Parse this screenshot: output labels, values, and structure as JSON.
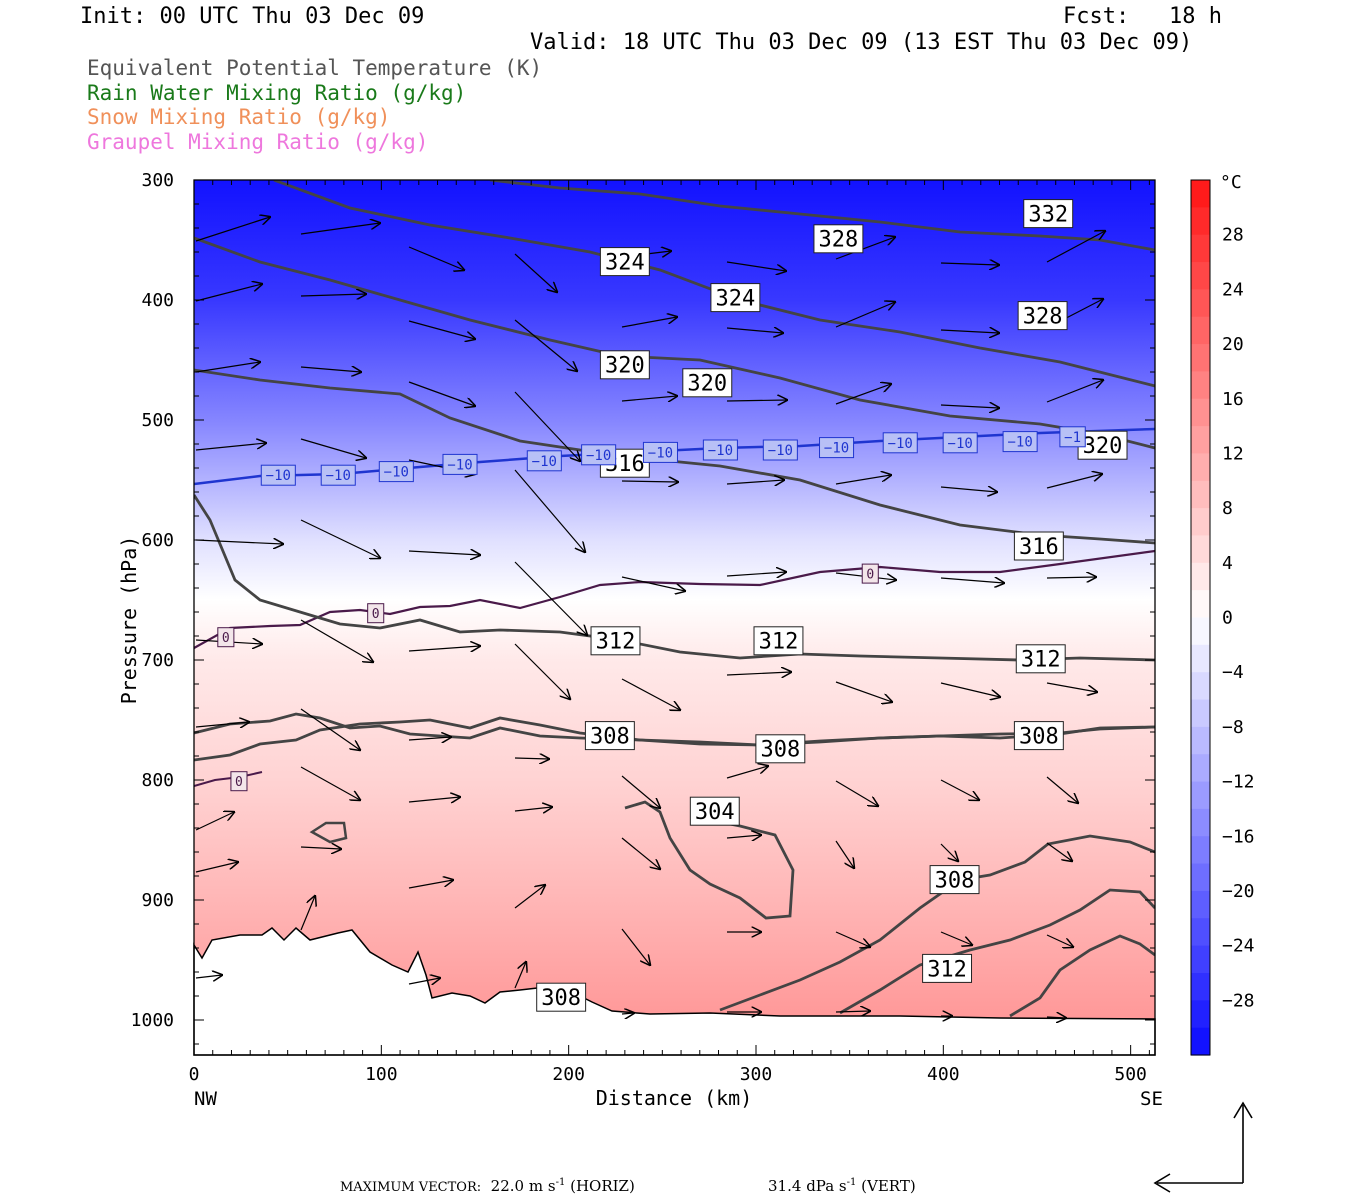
{
  "header": {
    "init": "Init: 00 UTC Thu 03 Dec 09",
    "fcst": "Fcst:   18 h",
    "valid": "Valid: 18 UTC Thu 03 Dec 09 (13 EST Thu 03 Dec 09)"
  },
  "legend": [
    {
      "label": "Equivalent Potential Temperature (K)",
      "color": "#555555"
    },
    {
      "label": "Rain Water Mixing Ratio (g/kg)",
      "color": "#1a7a1a"
    },
    {
      "label": "Snow Mixing Ratio (g/kg)",
      "color": "#f0905a"
    },
    {
      "label": "Graupel Mixing Ratio (g/kg)",
      "color": "#ee77dd"
    }
  ],
  "footer": {
    "max_vector_label": "MAXIMUM VECTOR:",
    "horiz_value": "22.0",
    "horiz_unit": "m s",
    "horiz_tail": "(HORIZ)",
    "vert_value": "31.4",
    "vert_unit": "dPa s",
    "vert_tail": "(VERT)",
    "exponent": "-1"
  },
  "chart_data": {
    "type": "heatmap",
    "xlabel": "Distance (km)",
    "ylabel": "Pressure (hPa)",
    "x_ticks": [
      "0",
      "100",
      "200",
      "300",
      "400",
      "500"
    ],
    "x_end_labels": {
      "left": "NW",
      "right": "SE"
    },
    "xlim": [
      0,
      513
    ],
    "ylim": [
      300,
      1030
    ],
    "y_ticks": [
      "300",
      "400",
      "500",
      "600",
      "700",
      "800",
      "900",
      "1000"
    ],
    "colorbar": {
      "unit": "°C",
      "labels": [
        "28",
        "24",
        "20",
        "16",
        "12",
        "8",
        "4",
        "0",
        "−4",
        "−8",
        "−12",
        "−16",
        "−20",
        "−24",
        "−28"
      ],
      "range": [
        -32,
        32
      ]
    },
    "temperature_field": [
      {
        "p": 300,
        "t": -31
      },
      {
        "p": 400,
        "t": -26
      },
      {
        "p": 500,
        "t": -16
      },
      {
        "p": 550,
        "t": -10
      },
      {
        "p": 600,
        "t": -4
      },
      {
        "p": 650,
        "t": 0
      },
      {
        "p": 700,
        "t": 3
      },
      {
        "p": 800,
        "t": 6
      },
      {
        "p": 900,
        "t": 10
      },
      {
        "p": 1000,
        "t": 14
      }
    ],
    "theta_e_labels": [
      {
        "text": "332",
        "x": 456,
        "p": 328
      },
      {
        "text": "328",
        "x": 344,
        "p": 349
      },
      {
        "text": "328",
        "x": 453,
        "p": 413
      },
      {
        "text": "324",
        "x": 230,
        "p": 368
      },
      {
        "text": "324",
        "x": 289,
        "p": 398
      },
      {
        "text": "320",
        "x": 230,
        "p": 454
      },
      {
        "text": "320",
        "x": 274,
        "p": 469
      },
      {
        "text": "320",
        "x": 485,
        "p": 521
      },
      {
        "text": "316",
        "x": 230,
        "p": 536
      },
      {
        "text": "316",
        "x": 451,
        "p": 605
      },
      {
        "text": "312",
        "x": 225,
        "p": 684
      },
      {
        "text": "312",
        "x": 312,
        "p": 684
      },
      {
        "text": "312",
        "x": 452,
        "p": 699
      },
      {
        "text": "308",
        "x": 222,
        "p": 763
      },
      {
        "text": "308",
        "x": 313,
        "p": 774
      },
      {
        "text": "308",
        "x": 451,
        "p": 763
      },
      {
        "text": "304",
        "x": 278,
        "p": 826
      },
      {
        "text": "308",
        "x": 406,
        "p": 883
      },
      {
        "text": "312",
        "x": 402,
        "p": 957
      },
      {
        "text": "308",
        "x": 196,
        "p": 981
      }
    ],
    "isotherm_labels": [
      {
        "text": "−10",
        "x": 45,
        "p": 546
      },
      {
        "text": "−10",
        "x": 77,
        "p": 546
      },
      {
        "text": "−10",
        "x": 108,
        "p": 543
      },
      {
        "text": "−10",
        "x": 142,
        "p": 537
      },
      {
        "text": "−10",
        "x": 187,
        "p": 534
      },
      {
        "text": "−10",
        "x": 216,
        "p": 529
      },
      {
        "text": "−10",
        "x": 249,
        "p": 527
      },
      {
        "text": "−10",
        "x": 281,
        "p": 525
      },
      {
        "text": "−10",
        "x": 313,
        "p": 525
      },
      {
        "text": "−10",
        "x": 343,
        "p": 523
      },
      {
        "text": "−10",
        "x": 377,
        "p": 519
      },
      {
        "text": "−10",
        "x": 409,
        "p": 519
      },
      {
        "text": "−10",
        "x": 441,
        "p": 518
      },
      {
        "text": "−1",
        "x": 469,
        "p": 514
      },
      {
        "text": "0",
        "x": 17,
        "p": 681
      },
      {
        "text": "0",
        "x": 97,
        "p": 661
      },
      {
        "text": "0",
        "x": 361,
        "p": 628
      },
      {
        "text": "0",
        "x": 24,
        "p": 801
      }
    ]
  }
}
